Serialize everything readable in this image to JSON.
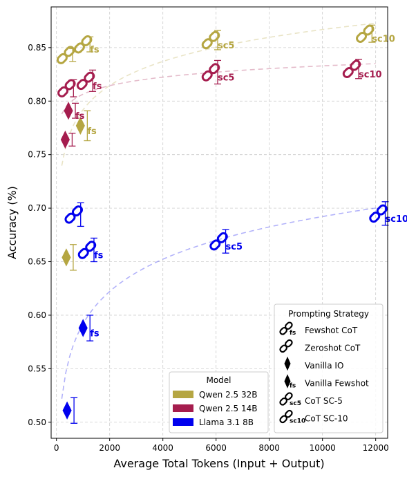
{
  "chart_data": {
    "type": "scatter",
    "title": "",
    "xlabel": "Average Total Tokens (Input + Output)",
    "ylabel": "Accuracy (%)",
    "xlim": [
      -200,
      12450
    ],
    "ylim": [
      0.485,
      0.888
    ],
    "x_ticks": [
      0,
      2000,
      4000,
      6000,
      8000,
      10000,
      12000
    ],
    "y_ticks": [
      0.5,
      0.55,
      0.6,
      0.65,
      0.7,
      0.75,
      0.8,
      0.85
    ],
    "grid": true,
    "models": [
      {
        "name": "Qwen 2.5 32B",
        "color": "#b5a642"
      },
      {
        "name": "Qwen 2.5 14B",
        "color": "#a51d4e"
      },
      {
        "name": "Llama 3.1 8B",
        "color": "#0000ee"
      }
    ],
    "strategies": [
      {
        "name": "Fewshot CoT",
        "icon": "link-icon",
        "tag": "fs"
      },
      {
        "name": "Zeroshot CoT",
        "icon": "link-icon",
        "tag": ""
      },
      {
        "name": "Vanilla IO",
        "icon": "diamond-icon",
        "tag": ""
      },
      {
        "name": "Vanilla Fewshot",
        "icon": "diamond-icon",
        "tag": "fs"
      },
      {
        "name": "CoT SC-5",
        "icon": "link-icon",
        "tag": "sc5"
      },
      {
        "name": "CoT SC-10",
        "icon": "link-icon",
        "tag": "sc10"
      }
    ],
    "series": [
      {
        "name": "Qwen 2.5 32B",
        "points": [
          {
            "strategy": "Zeroshot CoT",
            "x": 350,
            "y": 0.843,
            "err": 0.006
          },
          {
            "strategy": "Fewshot CoT",
            "x": 1000,
            "y": 0.853,
            "err": 0.007
          },
          {
            "strategy": "Vanilla IO",
            "x": 370,
            "y": 0.654,
            "err": 0.012
          },
          {
            "strategy": "Vanilla Fewshot",
            "x": 900,
            "y": 0.777,
            "err": 0.014
          },
          {
            "strategy": "CoT SC-5",
            "x": 5800,
            "y": 0.857,
            "err": 0.009
          },
          {
            "strategy": "CoT SC-10",
            "x": 11600,
            "y": 0.863,
            "err": 0.008
          }
        ]
      },
      {
        "name": "Qwen 2.5 14B",
        "points": [
          {
            "strategy": "Zeroshot CoT",
            "x": 380,
            "y": 0.812,
            "err": 0.008
          },
          {
            "strategy": "Fewshot CoT",
            "x": 1100,
            "y": 0.819,
            "err": 0.01
          },
          {
            "strategy": "Vanilla IO",
            "x": 330,
            "y": 0.764,
            "err": 0.006
          },
          {
            "strategy": "Vanilla Fewshot",
            "x": 450,
            "y": 0.791,
            "err": 0.007
          },
          {
            "strategy": "CoT SC-5",
            "x": 5800,
            "y": 0.827,
            "err": 0.011
          },
          {
            "strategy": "CoT SC-10",
            "x": 11100,
            "y": 0.83,
            "err": 0.009
          }
        ]
      },
      {
        "name": "Llama 3.1 8B",
        "points": [
          {
            "strategy": "Zeroshot CoT",
            "x": 650,
            "y": 0.694,
            "err": 0.011
          },
          {
            "strategy": "Fewshot CoT",
            "x": 1150,
            "y": 0.661,
            "err": 0.011
          },
          {
            "strategy": "Vanilla IO",
            "x": 400,
            "y": 0.511,
            "err": 0.012
          },
          {
            "strategy": "Vanilla Fewshot",
            "x": 1000,
            "y": 0.588,
            "err": 0.012
          },
          {
            "strategy": "CoT SC-5",
            "x": 6100,
            "y": 0.669,
            "err": 0.011
          },
          {
            "strategy": "CoT SC-10",
            "x": 12100,
            "y": 0.695,
            "err": 0.011
          }
        ]
      }
    ],
    "trend_lines": [
      {
        "model": "Qwen 2.5 32B",
        "a": 0.5675,
        "b": 0.0325,
        "x_from": 200,
        "x_to": 12000
      },
      {
        "model": "Qwen 2.5 14B",
        "a": 0.727,
        "b": 0.0115,
        "x_from": 200,
        "x_to": 12000
      },
      {
        "model": "Llama 3.1 8B",
        "a": 0.2915,
        "b": 0.0435,
        "x_from": 200,
        "x_to": 12000
      }
    ],
    "legend_model_title": "Model",
    "legend_strategy_title": "Prompting Strategy",
    "legend_model_position": "lower-center",
    "legend_strategy_position": "lower-right"
  }
}
